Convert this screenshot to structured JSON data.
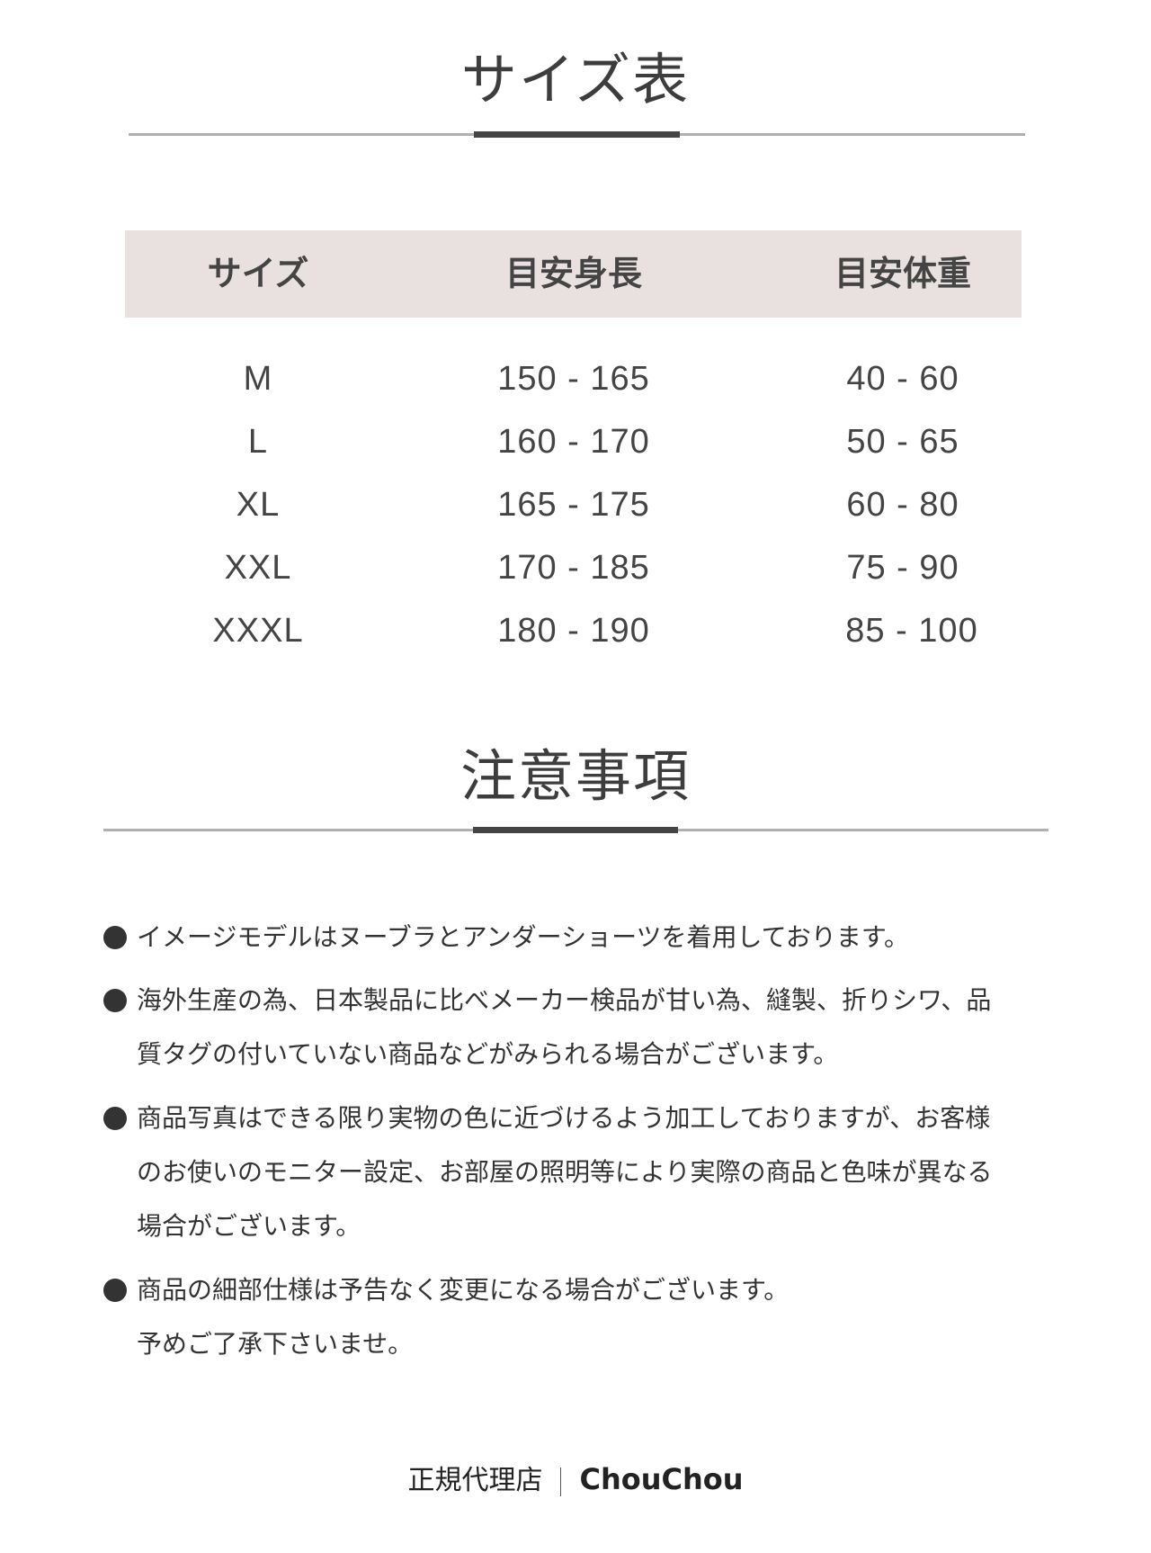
{
  "size_section": {
    "title": "サイズ表",
    "headers": [
      "サイズ",
      "目安身長",
      "目安体重"
    ],
    "rows": [
      [
        "M",
        "150 - 165",
        "40 - 60"
      ],
      [
        "L",
        "160 - 170",
        "50 - 65"
      ],
      [
        "XL",
        "165 - 175",
        "60 - 80"
      ],
      [
        "XXL",
        "170 - 185",
        "75 - 90"
      ],
      [
        "XXXL",
        "180 - 190",
        "85 - 100"
      ]
    ]
  },
  "notes_section": {
    "title": "注意事項",
    "items": [
      {
        "lines": [
          "イメージモデルはヌーブラとアンダーショーツを着用しております。"
        ]
      },
      {
        "lines": [
          "海外生産の為、日本製品に比べメーカー検品が甘い為、縫製、折りシワ、品",
          "質タグの付いていない商品などがみられる場合がございます。"
        ]
      },
      {
        "lines": [
          "商品写真はできる限り実物の色に近づけるよう加工しておりますが、お客様",
          "のお使いのモニター設定、お部屋の照明等により実際の商品と色味が異なる",
          "場合がございます。"
        ]
      },
      {
        "lines": [
          "商品の細部仕様は予告なく変更になる場合がございます。",
          "予めご了承下さいませ。"
        ]
      }
    ]
  },
  "footer": {
    "label": "正規代理店",
    "brand": "ChouChou"
  },
  "colors": {
    "header_bg": "#e9e1df",
    "accent_bar": "#444444",
    "rule": "#b0b0b0"
  }
}
